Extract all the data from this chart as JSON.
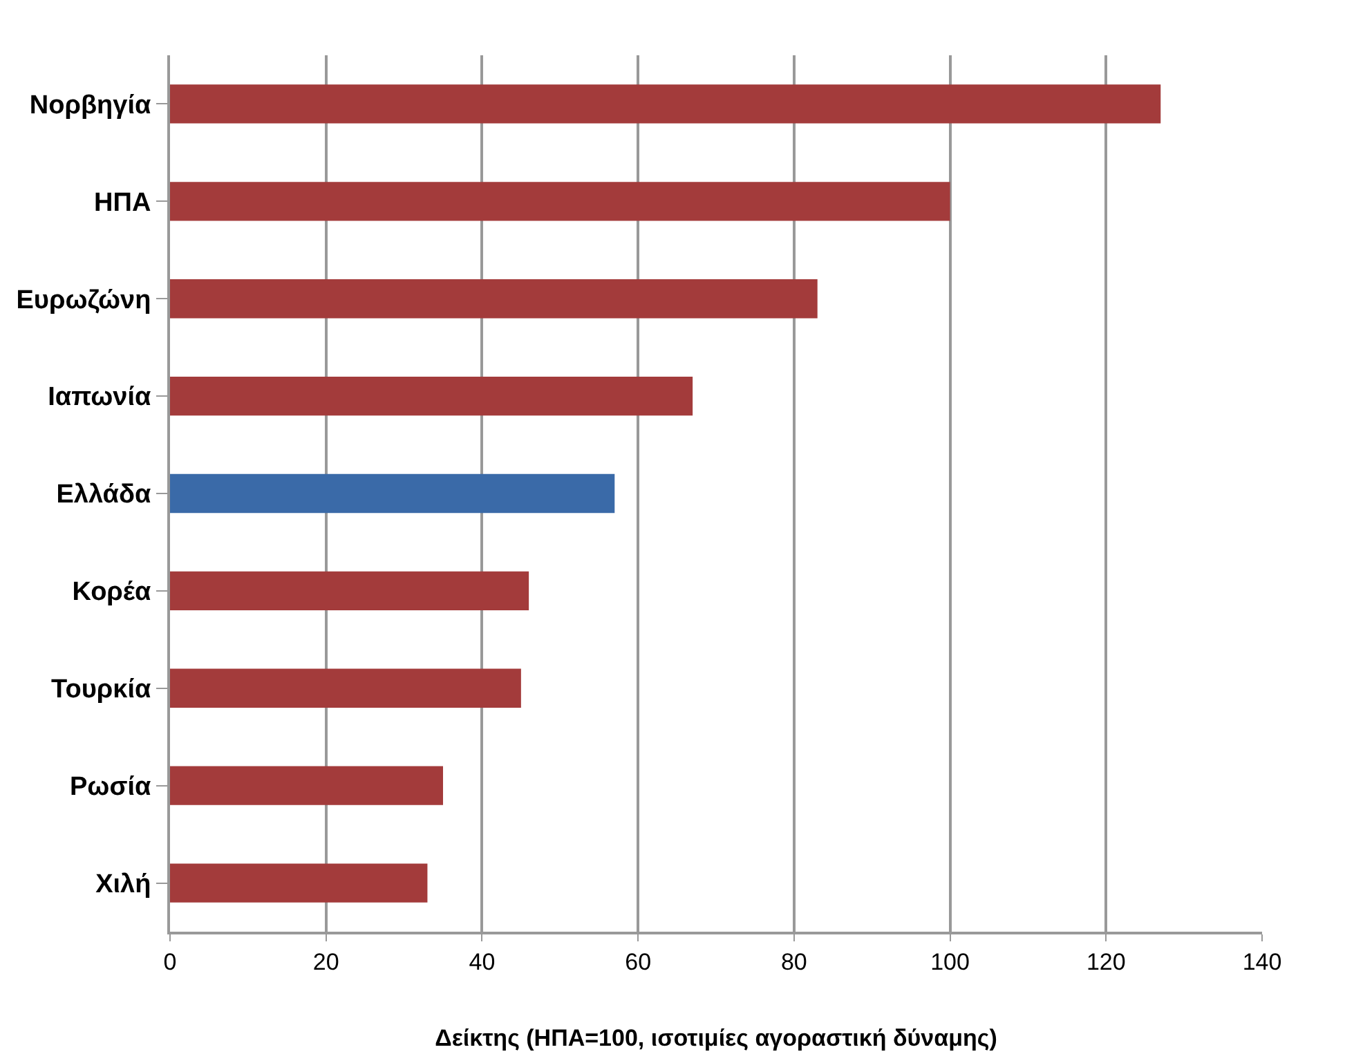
{
  "chart_data": {
    "type": "bar",
    "orientation": "horizontal",
    "categories": [
      "Νορβηγία",
      "ΗΠΑ",
      "Ευρωζώνη",
      "Ιαπωνία",
      "Ελλάδα",
      "Κορέα",
      "Τουρκία",
      "Ρωσία",
      "Χιλή"
    ],
    "values": [
      127,
      100,
      83,
      67,
      57,
      46,
      45,
      35,
      33
    ],
    "colors": [
      "#a33b3b",
      "#a33b3b",
      "#a33b3b",
      "#a33b3b",
      "#3a6aa8",
      "#a33b3b",
      "#a33b3b",
      "#a33b3b",
      "#a33b3b"
    ],
    "xlim": [
      0,
      140
    ],
    "xticks": [
      0,
      20,
      40,
      60,
      80,
      100,
      120,
      140
    ],
    "xlabel": "Δείκτης (ΗΠΑ=100, ισοτιμίες αγοραστική δύναμης)",
    "grid": "x"
  }
}
